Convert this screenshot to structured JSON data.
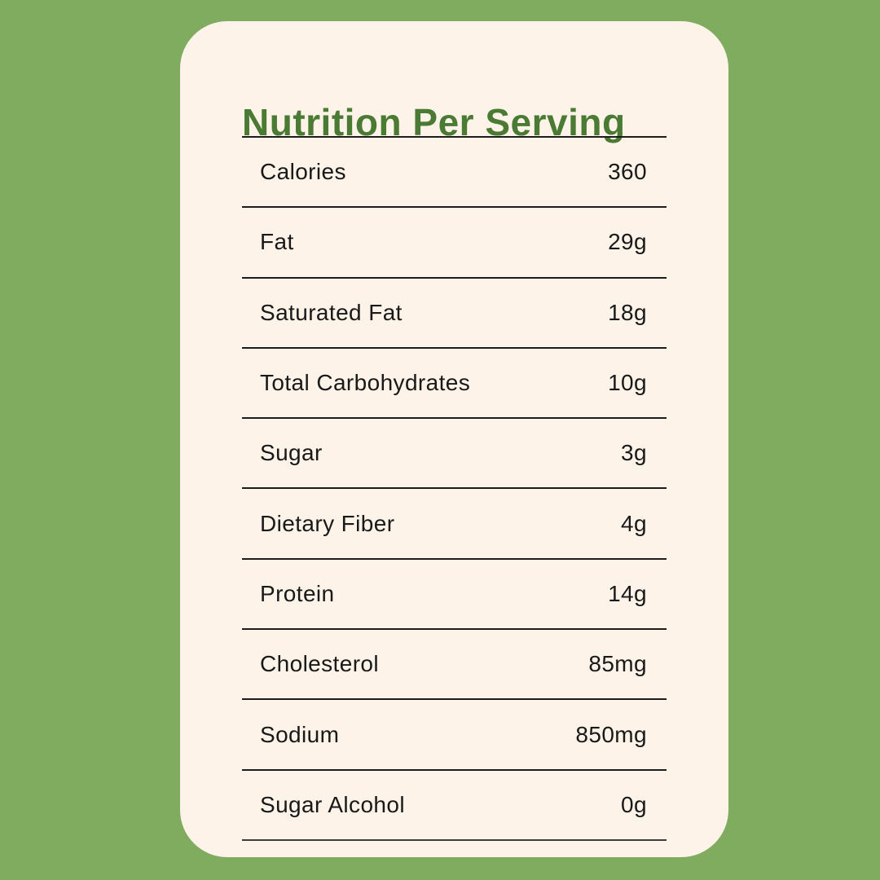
{
  "card": {
    "title": "Nutrition Per Serving",
    "rows": [
      {
        "label": "Calories",
        "value": "360"
      },
      {
        "label": "Fat",
        "value": "29g"
      },
      {
        "label": "Saturated Fat",
        "value": "18g"
      },
      {
        "label": "Total Carbohydrates",
        "value": "10g"
      },
      {
        "label": "Sugar",
        "value": "3g"
      },
      {
        "label": "Dietary Fiber",
        "value": "4g"
      },
      {
        "label": "Protein",
        "value": "14g"
      },
      {
        "label": "Cholesterol",
        "value": "85mg"
      },
      {
        "label": "Sodium",
        "value": "850mg"
      },
      {
        "label": "Sugar Alcohol",
        "value": "0g"
      }
    ]
  },
  "colors": {
    "page_background": "#7FAC5F",
    "card_background": "#FDF3E8",
    "title_text": "#4A7A33",
    "body_text": "#191919",
    "divider": "#1C1C1C"
  }
}
